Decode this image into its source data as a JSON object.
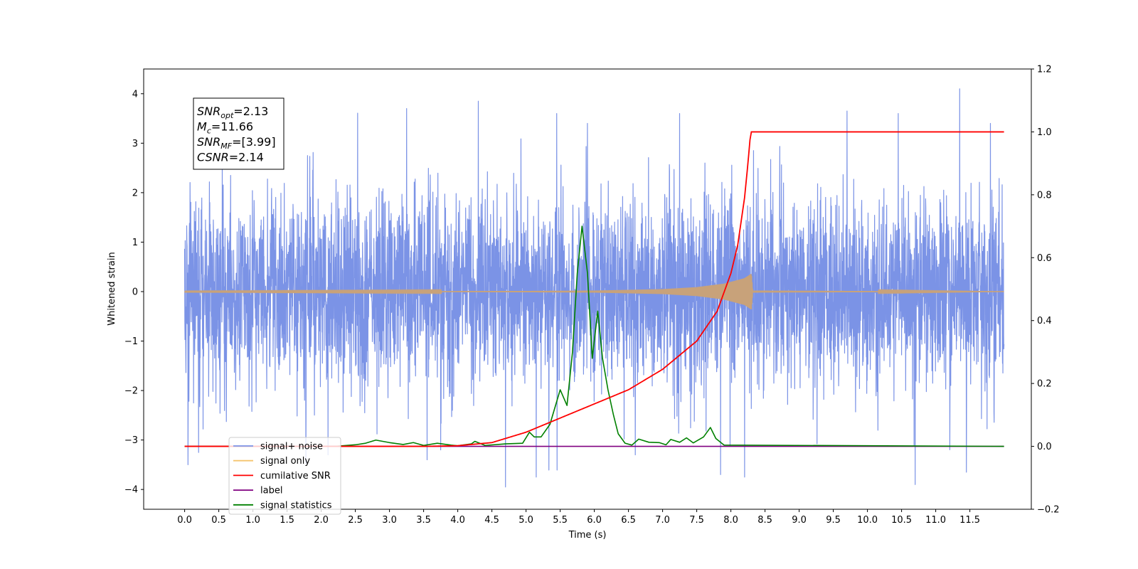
{
  "chart_data": {
    "type": "line",
    "xlabel": "Time (s)",
    "ylabel_left": "Whitened strain",
    "ylabel_right": "",
    "xlim": [
      -0.6,
      12.4
    ],
    "ylim_left": [
      -4.4,
      4.5
    ],
    "ylim_right": [
      -0.2,
      1.2
    ],
    "x_ticks": [
      0.0,
      0.5,
      1.0,
      1.5,
      2.0,
      2.5,
      3.0,
      3.5,
      4.0,
      4.5,
      5.0,
      5.5,
      6.0,
      6.5,
      7.0,
      7.5,
      8.0,
      8.5,
      9.0,
      9.5,
      10.0,
      10.5,
      11.0,
      11.5
    ],
    "x_tick_labels": [
      "0.0",
      "0.5",
      "1.0",
      "1.5",
      "2.0",
      "2.5",
      "3.0",
      "3.5",
      "4.0",
      "4.5",
      "5.0",
      "5.5",
      "6.0",
      "6.5",
      "7.0",
      "7.5",
      "8.0",
      "8.5",
      "9.0",
      "9.5",
      "10.0",
      "10.5",
      "11.0",
      "11.5"
    ],
    "y_left_ticks": [
      4,
      3,
      2,
      1,
      0,
      -1,
      -2,
      -3,
      -4
    ],
    "y_left_tick_labels": [
      "4",
      "3",
      "2",
      "1",
      "0",
      "−1",
      "−2",
      "−3",
      "−4"
    ],
    "y_right_ticks": [
      1.2,
      1.0,
      0.8,
      0.6,
      0.4,
      0.2,
      0.0,
      -0.2
    ],
    "y_right_tick_labels": [
      "1.2",
      "1.0",
      "0.8",
      "0.6",
      "0.4",
      "0.2",
      "0.0",
      "−0.2"
    ],
    "annotation": [
      {
        "base": "SNR",
        "sub": "opt",
        "value": "=2.13"
      },
      {
        "base": "M",
        "sub": "c",
        "value": "=11.66"
      },
      {
        "base": "SNR",
        "sub": "MF",
        "value": "=[3.99]"
      },
      {
        "base": "CSNR",
        "sub": "",
        "value": "=2.14"
      }
    ],
    "series": [
      {
        "name": "signal+ noise",
        "axis": "left",
        "color": "#7b93e6",
        "kind": "noise",
        "x_range": [
          0.0,
          12.0
        ],
        "amplitude_typical": 1.5,
        "amplitude_peak": 4.1,
        "peaks": [
          {
            "x": 0.05,
            "y": -3.5
          },
          {
            "x": 0.55,
            "y": 2.55
          },
          {
            "x": 1.8,
            "y": 2.75
          },
          {
            "x": 3.25,
            "y": 3.7
          },
          {
            "x": 3.55,
            "y": -3.4
          },
          {
            "x": 3.75,
            "y": -3.2
          },
          {
            "x": 4.3,
            "y": 3.85
          },
          {
            "x": 4.7,
            "y": -3.95
          },
          {
            "x": 5.15,
            "y": -3.75
          },
          {
            "x": 5.45,
            "y": 3.6
          },
          {
            "x": 5.9,
            "y": 3.4
          },
          {
            "x": 6.6,
            "y": -3.3
          },
          {
            "x": 7.85,
            "y": -3.7
          },
          {
            "x": 8.2,
            "y": -3.75
          },
          {
            "x": 9.7,
            "y": 3.65
          },
          {
            "x": 10.45,
            "y": 3.6
          },
          {
            "x": 10.7,
            "y": -3.9
          },
          {
            "x": 11.35,
            "y": 4.1
          },
          {
            "x": 11.45,
            "y": -3.65
          },
          {
            "x": 7.25,
            "y": 3.6
          },
          {
            "x": 11.8,
            "y": 3.4
          },
          {
            "x": 2.1,
            "y": -3.3
          }
        ]
      },
      {
        "name": "signal only",
        "axis": "left",
        "color": "#f5c46e",
        "color_drawn": "#c8a27a",
        "kind": "chirp",
        "x_range": [
          0.0,
          12.0
        ],
        "envelope": [
          {
            "x": 0.0,
            "y": 0.004
          },
          {
            "x": 5.0,
            "y": 0.012
          },
          {
            "x": 6.0,
            "y": 0.02
          },
          {
            "x": 7.0,
            "y": 0.05
          },
          {
            "x": 7.5,
            "y": 0.09
          },
          {
            "x": 7.9,
            "y": 0.16
          },
          {
            "x": 8.2,
            "y": 0.27
          },
          {
            "x": 8.3,
            "y": 0.36
          },
          {
            "x": 8.32,
            "y": 0.02
          },
          {
            "x": 12.0,
            "y": 0.0
          }
        ]
      },
      {
        "name": "cumilative SNR",
        "axis": "right",
        "color": "#ff0000",
        "points": [
          {
            "x": 0.0,
            "y": 0.0
          },
          {
            "x": 3.5,
            "y": 0.0
          },
          {
            "x": 4.0,
            "y": 0.002
          },
          {
            "x": 4.5,
            "y": 0.012
          },
          {
            "x": 5.0,
            "y": 0.045
          },
          {
            "x": 5.5,
            "y": 0.09
          },
          {
            "x": 6.0,
            "y": 0.135
          },
          {
            "x": 6.5,
            "y": 0.18
          },
          {
            "x": 7.0,
            "y": 0.245
          },
          {
            "x": 7.5,
            "y": 0.335
          },
          {
            "x": 7.8,
            "y": 0.43
          },
          {
            "x": 8.0,
            "y": 0.55
          },
          {
            "x": 8.1,
            "y": 0.64
          },
          {
            "x": 8.2,
            "y": 0.79
          },
          {
            "x": 8.25,
            "y": 0.9
          },
          {
            "x": 8.29,
            "y": 1.0
          },
          {
            "x": 12.0,
            "y": 1.0
          }
        ]
      },
      {
        "name": "label",
        "axis": "right",
        "color": "#800080",
        "points": [
          {
            "x": 0.0,
            "y": 0.0
          },
          {
            "x": 12.0,
            "y": 0.0
          }
        ]
      },
      {
        "name": "signal statistics",
        "axis": "right",
        "color": "#008000",
        "points": [
          {
            "x": 0.0,
            "y": 0.0
          },
          {
            "x": 2.2,
            "y": 0.0
          },
          {
            "x": 2.5,
            "y": 0.005
          },
          {
            "x": 2.65,
            "y": 0.01
          },
          {
            "x": 2.8,
            "y": 0.02
          },
          {
            "x": 3.0,
            "y": 0.012
          },
          {
            "x": 3.2,
            "y": 0.006
          },
          {
            "x": 3.35,
            "y": 0.012
          },
          {
            "x": 3.5,
            "y": 0.003
          },
          {
            "x": 3.7,
            "y": 0.01
          },
          {
            "x": 3.9,
            "y": 0.004
          },
          {
            "x": 4.0,
            "y": 0.002
          },
          {
            "x": 4.2,
            "y": 0.008
          },
          {
            "x": 4.25,
            "y": 0.016
          },
          {
            "x": 4.4,
            "y": 0.003
          },
          {
            "x": 4.7,
            "y": 0.008
          },
          {
            "x": 4.95,
            "y": 0.01
          },
          {
            "x": 5.05,
            "y": 0.045
          },
          {
            "x": 5.12,
            "y": 0.03
          },
          {
            "x": 5.22,
            "y": 0.03
          },
          {
            "x": 5.35,
            "y": 0.07
          },
          {
            "x": 5.5,
            "y": 0.18
          },
          {
            "x": 5.6,
            "y": 0.13
          },
          {
            "x": 5.68,
            "y": 0.3
          },
          {
            "x": 5.75,
            "y": 0.55
          },
          {
            "x": 5.82,
            "y": 0.7
          },
          {
            "x": 5.9,
            "y": 0.55
          },
          {
            "x": 5.97,
            "y": 0.28
          },
          {
            "x": 6.05,
            "y": 0.43
          },
          {
            "x": 6.12,
            "y": 0.28
          },
          {
            "x": 6.2,
            "y": 0.18
          },
          {
            "x": 6.28,
            "y": 0.1
          },
          {
            "x": 6.35,
            "y": 0.04
          },
          {
            "x": 6.45,
            "y": 0.01
          },
          {
            "x": 6.55,
            "y": 0.004
          },
          {
            "x": 6.65,
            "y": 0.023
          },
          {
            "x": 6.8,
            "y": 0.013
          },
          {
            "x": 6.95,
            "y": 0.012
          },
          {
            "x": 7.05,
            "y": 0.005
          },
          {
            "x": 7.12,
            "y": 0.022
          },
          {
            "x": 7.25,
            "y": 0.013
          },
          {
            "x": 7.35,
            "y": 0.027
          },
          {
            "x": 7.45,
            "y": 0.011
          },
          {
            "x": 7.6,
            "y": 0.03
          },
          {
            "x": 7.7,
            "y": 0.06
          },
          {
            "x": 7.78,
            "y": 0.025
          },
          {
            "x": 7.9,
            "y": 0.004
          },
          {
            "x": 12.0,
            "y": 0.0
          }
        ]
      }
    ],
    "legend": {
      "placement": "lower-left",
      "entries": [
        "signal+ noise",
        "signal only",
        "cumilative SNR",
        "label",
        "signal statistics"
      ]
    }
  }
}
